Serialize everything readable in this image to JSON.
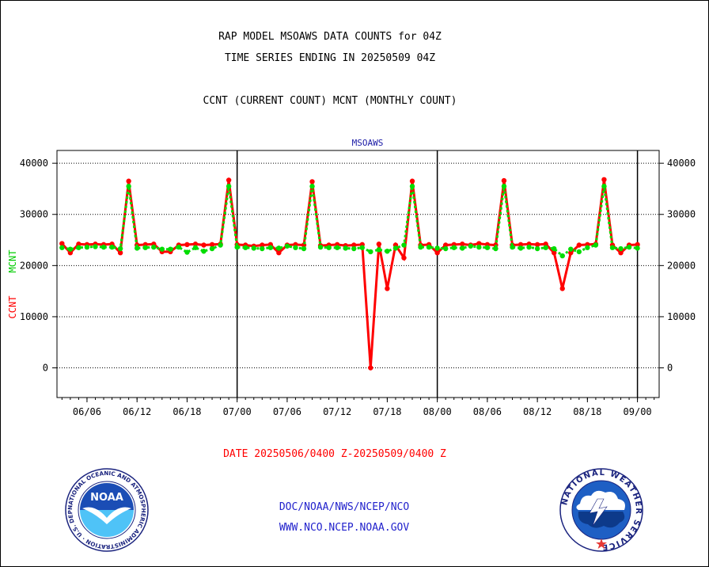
{
  "header": {
    "title": "RAP MODEL MSOAWS DATA COUNTS for 04Z",
    "subtitle": "TIME SERIES ENDING IN 20250509 04Z",
    "description": "CCNT (CURRENT COUNT) MCNT (MONTHLY COUNT)"
  },
  "chart_data": {
    "type": "line",
    "title": "MSOAWS",
    "ylabel_left": [
      "CCNT",
      "MCNT"
    ],
    "ylabel_colors": [
      "#ff0000",
      "#00cc00"
    ],
    "xlabel": "DATE 20250506/0400 Z-20250509/0400 Z",
    "ylim": [
      -5800,
      42500
    ],
    "y_ticks": [
      0,
      10000,
      20000,
      30000,
      40000
    ],
    "x_ticks": [
      "06/06",
      "06/12",
      "06/18",
      "07/00",
      "07/06",
      "07/12",
      "07/18",
      "08/00",
      "08/06",
      "08/12",
      "08/18",
      "09/00"
    ],
    "x_range_hours": [
      -3.6,
      68.6
    ],
    "day_lines_hours": [
      18,
      42,
      66
    ],
    "series": [
      {
        "name": "CCNT",
        "color": "#ff0000",
        "values": [
          24300,
          22500,
          24200,
          24100,
          24200,
          24100,
          24200,
          22500,
          36500,
          24000,
          24100,
          24200,
          22700,
          22700,
          24000,
          24100,
          24200,
          24000,
          24100,
          24200,
          36700,
          24100,
          24000,
          23800,
          24000,
          24100,
          22500,
          24000,
          24100,
          24000,
          36400,
          23900,
          24000,
          24100,
          23900,
          24000,
          24100,
          0,
          24200,
          15500,
          24000,
          21500,
          36500,
          24000,
          24100,
          22500,
          24000,
          24100,
          24200,
          24000,
          24300,
          24100,
          24000,
          36600,
          24000,
          24100,
          24200,
          24100,
          24200,
          22500,
          15500,
          22500,
          24000,
          24100,
          24200,
          36800,
          24000,
          22500,
          24000,
          24100
        ]
      },
      {
        "name": "MCNT",
        "color": "#00dd00",
        "values": [
          23500,
          23200,
          23500,
          23600,
          23700,
          23600,
          23600,
          23300,
          35500,
          23400,
          23500,
          23600,
          23200,
          23200,
          23600,
          22600,
          23500,
          22800,
          23300,
          24000,
          35500,
          23600,
          23500,
          23400,
          23300,
          23500,
          23400,
          23800,
          23500,
          23300,
          35500,
          23600,
          23500,
          23500,
          23400,
          23300,
          23500,
          22700,
          23100,
          22800,
          23400,
          24000,
          35500,
          23600,
          23600,
          23400,
          23300,
          23500,
          23400,
          23800,
          23600,
          23500,
          23300,
          35500,
          23600,
          23400,
          23600,
          23300,
          23500,
          23300,
          21900,
          23200,
          22700,
          23500,
          24000,
          35500,
          23500,
          23300,
          23600,
          23400
        ]
      }
    ]
  },
  "footer": {
    "agency_path": "DOC/NOAA/NWS/NCEP/NCO",
    "website": "WWW.NCO.NCEP.NOAA.GOV",
    "noaa_logo_text": "NOAA",
    "noaa_ring_text": "NATIONAL OCEANIC AND ATMOSPHERIC ADMINISTRATION · U.S. DEPARTMENT OF COMMERCE",
    "nws_ring_text": "NATIONAL WEATHER SERVICE"
  }
}
